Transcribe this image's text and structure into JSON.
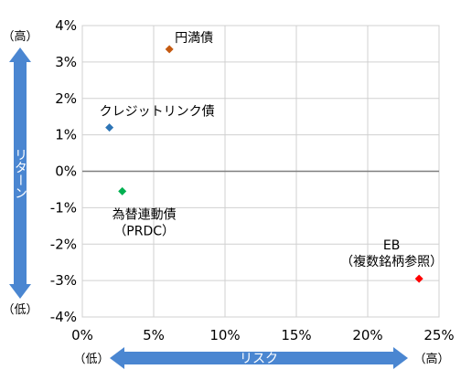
{
  "chart_data": {
    "type": "scatter",
    "xlim": [
      0,
      25
    ],
    "ylim": [
      -4,
      4
    ],
    "x_ticks": [
      "0%",
      "5%",
      "10%",
      "15%",
      "20%",
      "25%"
    ],
    "y_ticks": [
      "4%",
      "3%",
      "2%",
      "1%",
      "0%",
      "-1%",
      "-2%",
      "-3%",
      "-4%"
    ],
    "grid": true,
    "points": [
      {
        "label_lines": [
          "円満債"
        ],
        "x": 6.1,
        "y": 3.35,
        "color": "#c55a11"
      },
      {
        "label_lines": [
          "クレジットリンク債"
        ],
        "x": 1.9,
        "y": 1.2,
        "color": "#2e75b6"
      },
      {
        "label_lines": [
          "為替連動債",
          "（PRDC）"
        ],
        "x": 2.8,
        "y": -0.55,
        "color": "#00b050"
      },
      {
        "label_lines": [
          "EB",
          "（複数銘柄参照）"
        ],
        "x": 23.6,
        "y": -2.95,
        "color": "#ff0000"
      }
    ],
    "x_axis_arrow": {
      "label": "リスク",
      "low_label": "（低）",
      "high_label": "（高）"
    },
    "y_axis_arrow": {
      "label": "リターン",
      "low_label": "（低）",
      "high_label": "（高）"
    },
    "arrow_color": "#4a86d1"
  }
}
